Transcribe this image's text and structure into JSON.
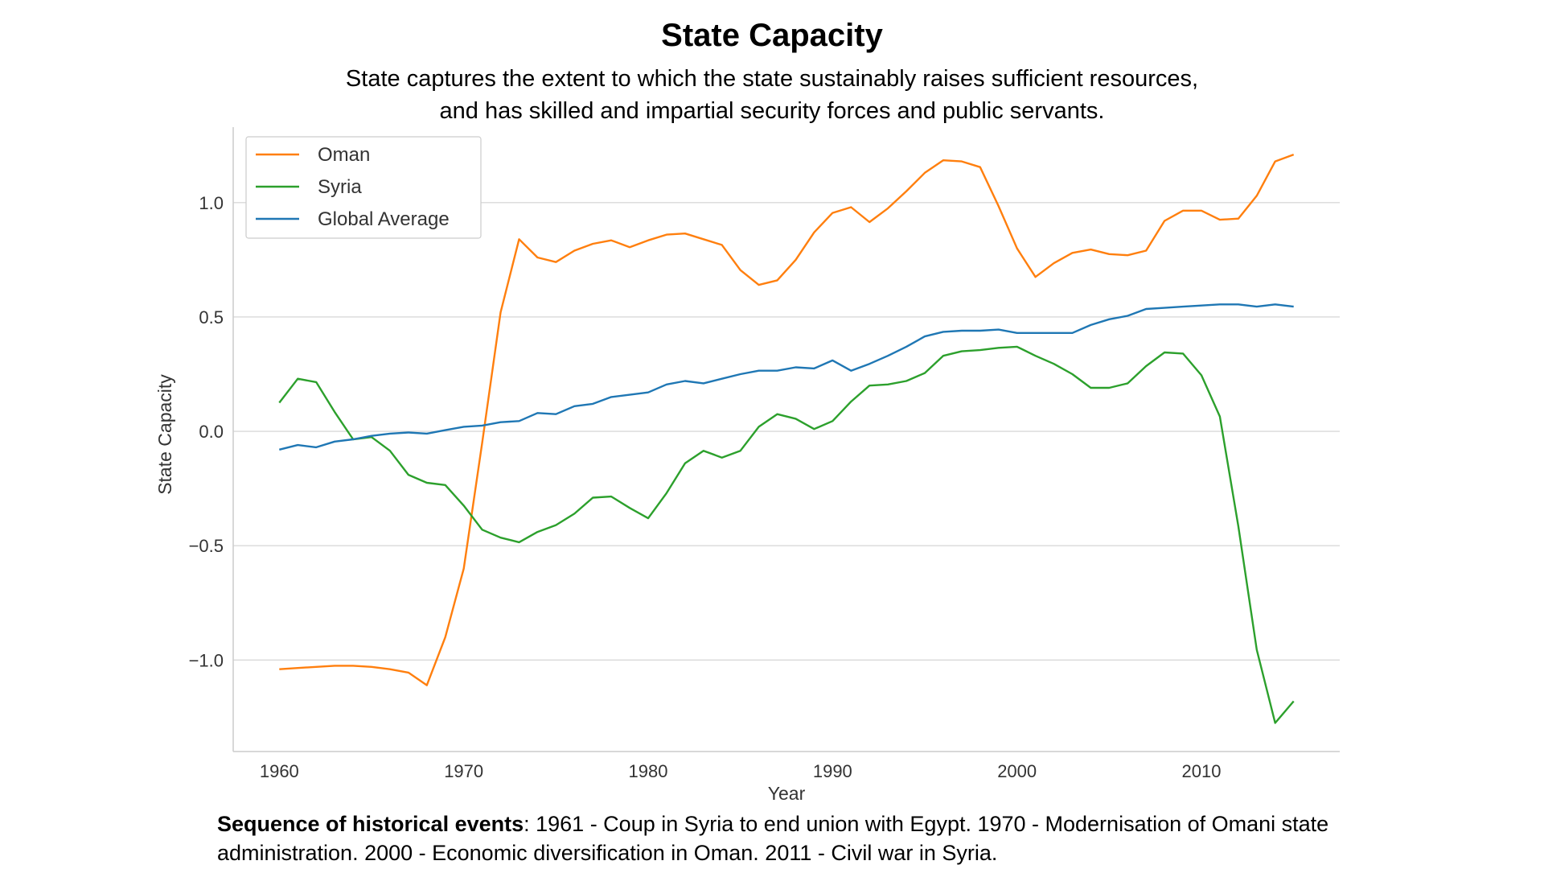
{
  "page": {
    "title": "State Capacity",
    "subtitle_lines": [
      "State captures the extent to which the state sustainably raises sufficient resources,",
      "and has skilled and impartial security forces and public servants."
    ],
    "footnote_bold": "Sequence of historical events",
    "footnote_text": ": 1961 - Coup in Syria to end union with Egypt. 1970 - Modernisation of Omani state administration. 2000 - Economic diversification in Oman. 2011 - Civil war in Syria."
  },
  "chart_data": {
    "type": "line",
    "title": "State Capacity",
    "xlabel": "Year",
    "ylabel": "State Capacity",
    "xlim": [
      1957.5,
      2017.5
    ],
    "ylim": [
      -1.4,
      1.33
    ],
    "xticks": [
      1960,
      1970,
      1980,
      1990,
      2000,
      2010
    ],
    "yticks": [
      -1.0,
      -0.5,
      0.0,
      0.5,
      1.0
    ],
    "ytick_labels": [
      "−1.0",
      "−0.5",
      "0.0",
      "0.5",
      "1.0"
    ],
    "grid": "horizontal",
    "legend_position": "top-left",
    "x": [
      1960,
      1961,
      1962,
      1963,
      1964,
      1965,
      1966,
      1967,
      1968,
      1969,
      1970,
      1971,
      1972,
      1973,
      1974,
      1975,
      1976,
      1977,
      1978,
      1979,
      1980,
      1981,
      1982,
      1983,
      1984,
      1985,
      1986,
      1987,
      1988,
      1989,
      1990,
      1991,
      1992,
      1993,
      1994,
      1995,
      1996,
      1997,
      1998,
      1999,
      2000,
      2001,
      2002,
      2003,
      2004,
      2005,
      2006,
      2007,
      2008,
      2009,
      2010,
      2011,
      2012,
      2013,
      2014,
      2015
    ],
    "series": [
      {
        "name": "Oman",
        "color": "#ff7f0e",
        "values": [
          -1.04,
          -1.035,
          -1.03,
          -1.025,
          -1.025,
          -1.03,
          -1.04,
          -1.055,
          -1.11,
          -0.9,
          -0.6,
          -0.05,
          0.52,
          0.84,
          0.76,
          0.74,
          0.79,
          0.82,
          0.835,
          0.805,
          0.835,
          0.86,
          0.865,
          0.84,
          0.815,
          0.705,
          0.64,
          0.66,
          0.75,
          0.87,
          0.955,
          0.98,
          0.915,
          0.975,
          1.05,
          1.13,
          1.185,
          1.18,
          1.155,
          0.985,
          0.8,
          0.675,
          0.735,
          0.78,
          0.795,
          0.775,
          0.77,
          0.79,
          0.92,
          0.965,
          0.965,
          0.925,
          0.93,
          1.03,
          1.18,
          1.21
        ]
      },
      {
        "name": "Syria",
        "color": "#2ca02c",
        "values": [
          0.125,
          0.23,
          0.215,
          0.085,
          -0.035,
          -0.025,
          -0.085,
          -0.19,
          -0.225,
          -0.235,
          -0.325,
          -0.43,
          -0.465,
          -0.485,
          -0.44,
          -0.41,
          -0.36,
          -0.29,
          -0.285,
          -0.335,
          -0.38,
          -0.27,
          -0.14,
          -0.085,
          -0.115,
          -0.085,
          0.02,
          0.075,
          0.055,
          0.01,
          0.045,
          0.13,
          0.2,
          0.205,
          0.22,
          0.255,
          0.33,
          0.35,
          0.355,
          0.365,
          0.37,
          0.33,
          0.295,
          0.25,
          0.19,
          0.19,
          0.21,
          0.285,
          0.345,
          0.34,
          0.245,
          0.065,
          -0.415,
          -0.955,
          -1.275,
          -1.18
        ]
      },
      {
        "name": "Global Average",
        "color": "#1f77b4",
        "values": [
          -0.08,
          -0.06,
          -0.07,
          -0.045,
          -0.035,
          -0.02,
          -0.01,
          -0.005,
          -0.01,
          0.005,
          0.02,
          0.025,
          0.04,
          0.045,
          0.08,
          0.075,
          0.11,
          0.12,
          0.15,
          0.16,
          0.17,
          0.205,
          0.22,
          0.21,
          0.23,
          0.25,
          0.265,
          0.265,
          0.28,
          0.275,
          0.31,
          0.265,
          0.295,
          0.33,
          0.37,
          0.415,
          0.435,
          0.44,
          0.44,
          0.445,
          0.43,
          0.43,
          0.43,
          0.43,
          0.465,
          0.49,
          0.505,
          0.535,
          0.54,
          0.545,
          0.55,
          0.555,
          0.555,
          0.545,
          0.555,
          0.545
        ]
      }
    ]
  }
}
